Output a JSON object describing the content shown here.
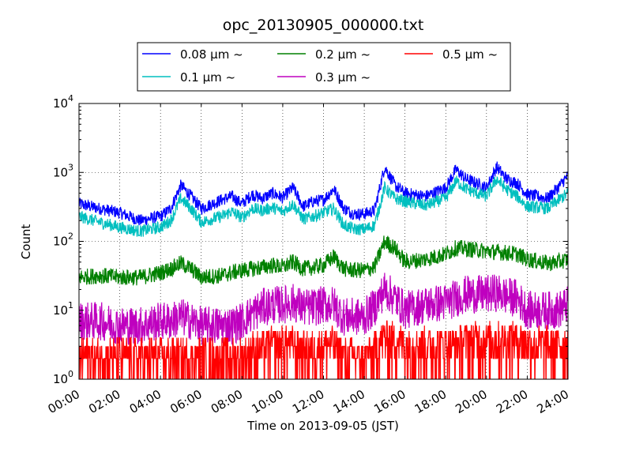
{
  "chart_data": {
    "type": "line",
    "title": "opc_20130905_000000.txt",
    "xlabel": "Time on 2013-09-05 (JST)",
    "ylabel": "Count",
    "yscale": "log",
    "ylim": [
      1,
      10000
    ],
    "xlim": [
      "00:00",
      "24:00"
    ],
    "x_ticks": [
      "00:00",
      "02:00",
      "04:00",
      "06:00",
      "08:00",
      "10:00",
      "12:00",
      "14:00",
      "16:00",
      "18:00",
      "20:00",
      "22:00",
      "24:00"
    ],
    "y_ticks": [
      {
        "base": "10",
        "exp": "0"
      },
      {
        "base": "10",
        "exp": "1"
      },
      {
        "base": "10",
        "exp": "2"
      },
      {
        "base": "10",
        "exp": "3"
      },
      {
        "base": "10",
        "exp": "4"
      }
    ],
    "grid": true,
    "legend_position": "top-center",
    "series": [
      {
        "name": "0.08 μm ~",
        "color": "#0000ff",
        "x_hours": [
          0,
          1,
          2,
          3,
          4,
          4.5,
          5,
          5.5,
          6,
          7,
          7.5,
          8,
          8.5,
          9,
          9.5,
          10,
          10.5,
          11,
          11.5,
          12,
          12.5,
          13,
          13.5,
          14,
          14.5,
          15,
          15.5,
          16,
          17,
          18,
          18.5,
          19,
          19.5,
          20,
          20.5,
          21,
          21.5,
          22,
          23,
          23.5,
          24
        ],
        "values": [
          350,
          300,
          260,
          200,
          230,
          300,
          650,
          450,
          300,
          400,
          450,
          350,
          480,
          420,
          500,
          430,
          600,
          320,
          380,
          400,
          580,
          300,
          250,
          250,
          280,
          1200,
          650,
          500,
          450,
          600,
          1100,
          800,
          700,
          600,
          1200,
          800,
          700,
          480,
          420,
          600,
          900
        ]
      },
      {
        "name": "0.1 μm ~",
        "color": "#00bfbf",
        "x_hours": [
          0,
          1,
          2,
          3,
          4,
          4.5,
          5,
          5.5,
          6,
          7,
          7.5,
          8,
          8.5,
          9,
          9.5,
          10,
          10.5,
          11,
          11.5,
          12,
          12.5,
          13,
          13.5,
          14,
          14.5,
          15,
          15.5,
          16,
          17,
          18,
          18.5,
          19,
          19.5,
          20,
          20.5,
          21,
          21.5,
          22,
          23,
          23.5,
          24
        ],
        "values": [
          230,
          190,
          160,
          140,
          160,
          200,
          420,
          300,
          190,
          230,
          270,
          220,
          300,
          280,
          310,
          270,
          350,
          210,
          230,
          260,
          300,
          170,
          150,
          150,
          170,
          600,
          420,
          380,
          330,
          420,
          750,
          580,
          500,
          450,
          800,
          560,
          450,
          320,
          300,
          390,
          500
        ]
      },
      {
        "name": "0.2 μm ~",
        "color": "#008000",
        "x_hours": [
          0,
          1,
          2,
          3,
          4,
          4.5,
          5,
          5.5,
          6,
          7,
          7.5,
          8,
          8.5,
          9,
          9.5,
          10,
          10.5,
          11,
          11.5,
          12,
          12.5,
          13,
          13.5,
          14,
          14.5,
          15,
          15.5,
          16,
          17,
          18,
          18.5,
          19,
          19.5,
          20,
          20.5,
          21,
          21.5,
          22,
          23,
          23.5,
          24
        ],
        "values": [
          30,
          32,
          30,
          30,
          35,
          40,
          48,
          40,
          30,
          32,
          35,
          38,
          40,
          42,
          45,
          42,
          50,
          40,
          42,
          45,
          60,
          40,
          38,
          38,
          42,
          100,
          80,
          50,
          55,
          65,
          80,
          78,
          75,
          72,
          70,
          68,
          65,
          55,
          48,
          50,
          55
        ]
      },
      {
        "name": "0.3 μm ~",
        "color": "#bf00bf",
        "x_hours": [
          0,
          1,
          2,
          3,
          4,
          4.5,
          5,
          5.5,
          6,
          7,
          7.5,
          8,
          8.5,
          9,
          9.5,
          10,
          10.5,
          11,
          11.5,
          12,
          12.5,
          13,
          13.5,
          14,
          14.5,
          15,
          15.5,
          16,
          17,
          18,
          18.5,
          19,
          19.5,
          20,
          20.5,
          21,
          21.5,
          22,
          23,
          23.5,
          24
        ],
        "values": [
          7,
          7,
          6,
          6,
          7,
          7,
          8,
          7,
          6,
          6,
          6,
          7,
          9,
          11,
          12,
          12,
          13,
          11,
          11,
          12,
          12,
          8,
          8,
          8,
          11,
          20,
          15,
          10,
          12,
          13,
          15,
          17,
          17,
          17,
          18,
          16,
          15,
          10,
          10,
          10,
          12
        ]
      },
      {
        "name": "0.5 μm ~",
        "color": "#ff0000",
        "x_hours": [
          0,
          1,
          2,
          3,
          4,
          4.5,
          5,
          5.5,
          6,
          7,
          7.5,
          8,
          8.5,
          9,
          9.5,
          10,
          10.5,
          11,
          11.5,
          12,
          12.5,
          13,
          13.5,
          14,
          14.5,
          15,
          15.5,
          16,
          17,
          18,
          18.5,
          19,
          19.5,
          20,
          20.5,
          21,
          21.5,
          22,
          23,
          23.5,
          24
        ],
        "values": [
          2,
          2,
          2,
          2,
          2,
          2,
          2,
          2,
          2,
          2,
          2,
          2,
          2.5,
          2.5,
          3,
          3,
          3,
          2.5,
          2.5,
          3,
          3,
          2,
          2,
          2,
          2.5,
          4,
          3.5,
          3,
          3,
          3,
          3,
          3.5,
          3.5,
          3.5,
          3.5,
          3.5,
          3.5,
          3,
          3,
          3,
          3
        ]
      }
    ]
  }
}
